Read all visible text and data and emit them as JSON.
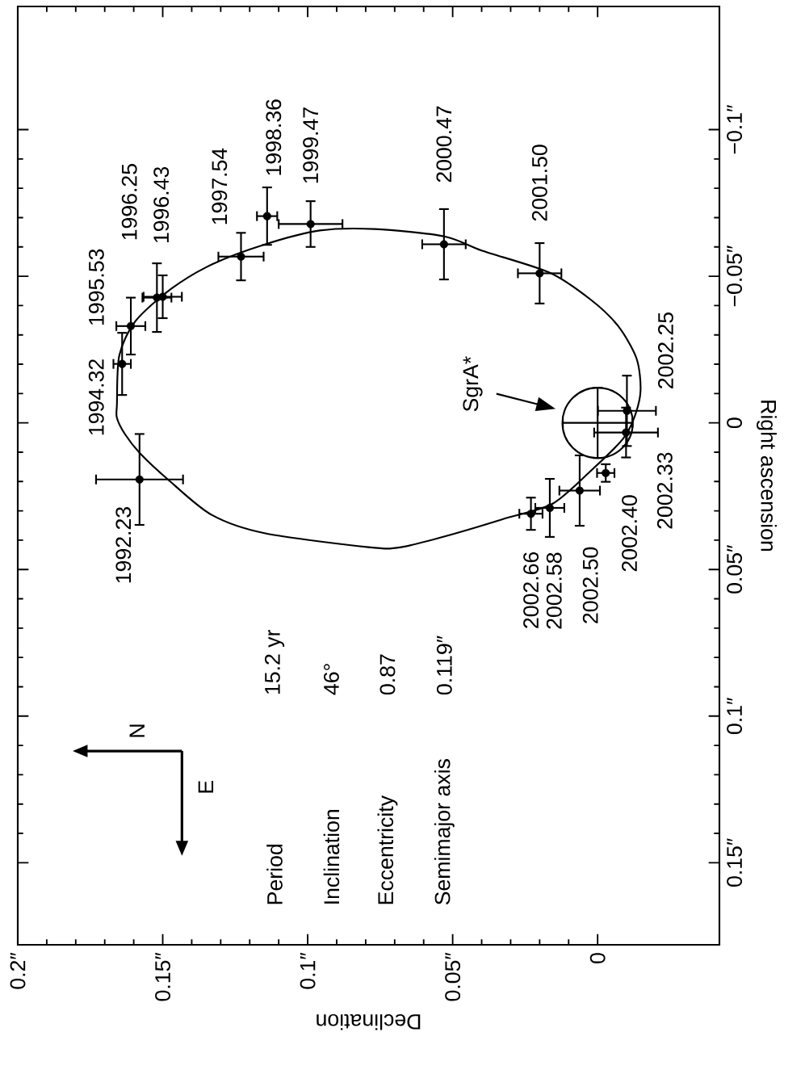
{
  "chart_data": {
    "type": "scatter",
    "xlabel": "Declination",
    "ylabel": "Right ascension",
    "xlim": [
      0.2,
      -0.042
    ],
    "ylim": [
      0.178,
      -0.142
    ],
    "xticks": [
      {
        "value": 0.2,
        "label": "0.2″"
      },
      {
        "value": 0.15,
        "label": "0.15″"
      },
      {
        "value": 0.1,
        "label": "0.1″"
      },
      {
        "value": 0.05,
        "label": "0.05″"
      },
      0
    ],
    "yticks": [
      {
        "value": 0.15,
        "label": "0.15″"
      },
      {
        "value": 0.1,
        "label": "0.1″"
      },
      {
        "value": 0.05,
        "label": "0.05″"
      },
      0,
      {
        "value": -0.05,
        "label": "−0.05″"
      },
      {
        "value": -0.1,
        "label": "−0.1″"
      }
    ],
    "annotations": [
      {
        "text": "1992.23",
        "x": 0.158,
        "y": 0.0193
      },
      {
        "text": "1994.32",
        "x": 0.164,
        "y": -0.0201
      },
      {
        "text": "1995.53",
        "x": 0.161,
        "y": -0.033
      },
      {
        "text": "1996.25",
        "x": 0.15,
        "y": -0.043
      },
      {
        "text": "1996.43",
        "x": 0.152,
        "y": -0.0427
      },
      {
        "text": "1997.54",
        "x": 0.123,
        "y": -0.0567
      },
      {
        "text": "1998.36",
        "x": 0.114,
        "y": -0.0705
      },
      {
        "text": "1999.47",
        "x": 0.099,
        "y": -0.0678
      },
      {
        "text": "2000.47",
        "x": 0.053,
        "y": -0.0609
      },
      {
        "text": "2001.50",
        "x": 0.02,
        "y": -0.051
      },
      {
        "text": "2002.25",
        "x": -0.0101,
        "y": -0.0041
      },
      {
        "text": "2002.33",
        "x": -0.0098,
        "y": 0.0033
      },
      {
        "text": "2002.40",
        "x": -0.0028,
        "y": 0.0171
      },
      {
        "text": "2002.50",
        "x": 0.0062,
        "y": 0.0231
      },
      {
        "text": "2002.58",
        "x": 0.0165,
        "y": 0.029
      },
      {
        "text": "2002.66",
        "x": 0.023,
        "y": 0.031
      },
      "Period",
      "15.2 yr",
      "Inclination",
      "46°",
      "Eccentricity",
      "0.87",
      "Semimajor axis",
      "0.119″",
      "N",
      "E"
    ],
    "series": [
      {
        "type": "scatter",
        "color": "#000000",
        "marker": "circle",
        "values": [
          0.0193,
          -0.0201,
          -0.033,
          -0.043,
          -0.0427,
          -0.0567,
          -0.0705,
          -0.0678,
          -0.0609,
          -0.051,
          -0.0041,
          0.0033,
          0.0171,
          0.0231,
          0.029,
          0.031
        ],
        "x": [
          0.158,
          0.164,
          0.161,
          0.15,
          0.152,
          0.123,
          0.114,
          0.099,
          0.053,
          0.02,
          -0.0101,
          -0.0098,
          -0.0028,
          0.0062,
          0.0165,
          0.023
        ],
        "xerrors": [
          0.015,
          0.003,
          0.005,
          0.0066,
          0.005,
          0.0078,
          0.0035,
          0.011,
          0.0075,
          0.0075,
          0.01,
          0.011,
          0.003,
          0.007,
          0.005,
          0.004
        ],
        "errors": [
          0.0155,
          0.0106,
          0.0097,
          0.0073,
          0.0117,
          0.0081,
          0.0098,
          0.0078,
          0.012,
          0.0103,
          0.012,
          0.0085,
          0.003,
          0.012,
          0.0099,
          0.0055
        ]
      },
      {
        "type": "scatter",
        "name": "SgrA*",
        "color": "#000000",
        "marker": "circle",
        "x": [
          0
        ],
        "values": [
          0
        ],
        "errors": [
          0.012
        ],
        "xerrors": [
          0.012
        ]
      }
    ]
  }
}
